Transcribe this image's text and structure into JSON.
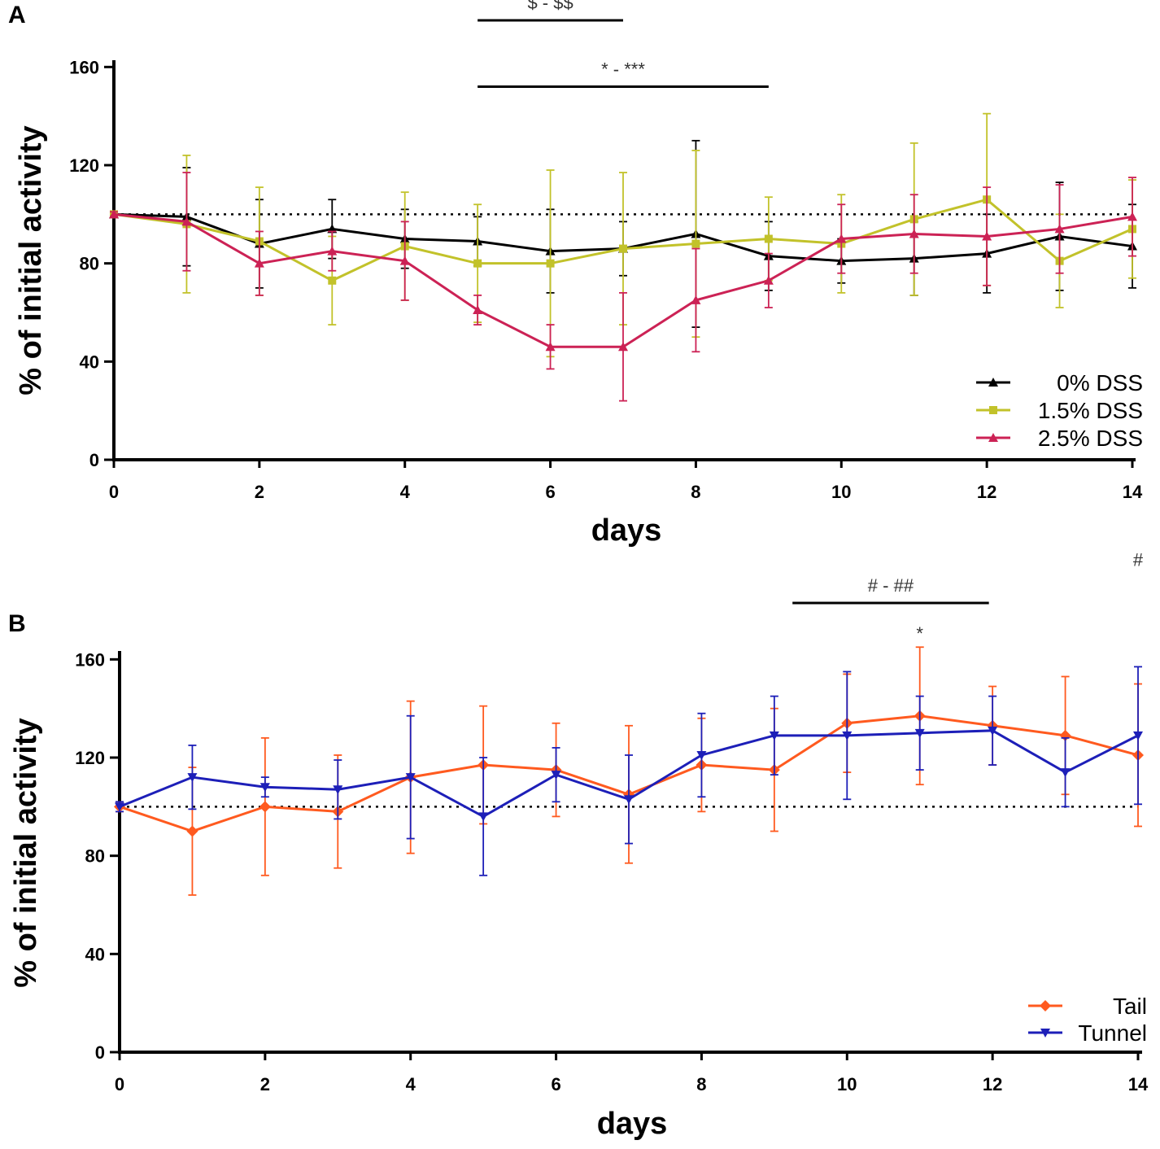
{
  "chart_data": [
    {
      "panel": "A",
      "type": "line",
      "xlabel": "days",
      "ylabel": "% of initial activity",
      "xlim": [
        0,
        14
      ],
      "ylim": [
        0,
        180
      ],
      "xticks": [
        0,
        2,
        4,
        6,
        8,
        10,
        12,
        14
      ],
      "yticks": [
        0,
        40,
        80,
        120,
        160
      ],
      "reference_line": 100,
      "legend_position": "bottom-right",
      "x": [
        0,
        1,
        2,
        3,
        4,
        5,
        6,
        7,
        8,
        9,
        10,
        11,
        12,
        13,
        14
      ],
      "series": [
        {
          "name": "0% DSS",
          "color": "#000000",
          "marker": "triangle-up",
          "values": [
            100,
            99,
            88,
            94,
            90,
            89,
            85,
            86,
            92,
            83,
            81,
            82,
            84,
            91,
            87
          ],
          "errors": [
            1,
            20,
            18,
            12,
            12,
            10,
            17,
            11,
            38,
            14,
            9,
            15,
            16,
            22,
            17
          ]
        },
        {
          "name": "1.5% DSS",
          "color": "#c2c22a",
          "marker": "square",
          "values": [
            100,
            96,
            89,
            73,
            87,
            80,
            80,
            86,
            88,
            90,
            88,
            98,
            106,
            81,
            94
          ],
          "errors": [
            1,
            28,
            22,
            18,
            22,
            24,
            38,
            31,
            38,
            17,
            20,
            31,
            35,
            19,
            20
          ]
        },
        {
          "name": "2.5% DSS",
          "color": "#cc2255",
          "marker": "triangle-up",
          "values": [
            100,
            97,
            80,
            85,
            81,
            61,
            46,
            46,
            65,
            73,
            90,
            92,
            91,
            94,
            99
          ],
          "errors": [
            1,
            20,
            13,
            8,
            16,
            6,
            9,
            22,
            21,
            11,
            14,
            16,
            20,
            18,
            16
          ]
        }
      ],
      "annotations": [
        {
          "text": "$ - $$",
          "x_range": [
            5,
            7
          ],
          "level": 179
        },
        {
          "text": "* - ***",
          "x_range": [
            5,
            9
          ],
          "level": 152
        }
      ]
    },
    {
      "panel": "B",
      "type": "line",
      "xlabel": "days",
      "ylabel": "% of initial activity",
      "xlim": [
        0,
        14
      ],
      "ylim": [
        0,
        180
      ],
      "xticks": [
        0,
        2,
        4,
        6,
        8,
        10,
        12,
        14
      ],
      "yticks": [
        0,
        40,
        80,
        120,
        160
      ],
      "reference_line": 100,
      "legend_position": "bottom-right",
      "x": [
        0,
        1,
        2,
        3,
        4,
        5,
        6,
        7,
        8,
        9,
        10,
        11,
        12,
        13,
        14
      ],
      "series": [
        {
          "name": "Tail",
          "color": "#ff5a1f",
          "marker": "diamond",
          "values": [
            100,
            90,
            100,
            98,
            112,
            117,
            115,
            105,
            117,
            115,
            134,
            137,
            133,
            129,
            121
          ],
          "errors": [
            2,
            26,
            28,
            23,
            31,
            24,
            19,
            28,
            19,
            25,
            20,
            28,
            16,
            24,
            29
          ]
        },
        {
          "name": "Tunnel",
          "color": "#1d1fb8",
          "marker": "triangle-down",
          "values": [
            100,
            112,
            108,
            107,
            112,
            96,
            113,
            103,
            121,
            129,
            129,
            130,
            131,
            114,
            129
          ],
          "errors": [
            2,
            13,
            4,
            12,
            25,
            24,
            11,
            18,
            17,
            16,
            26,
            15,
            14,
            14,
            28
          ]
        }
      ],
      "annotations": [
        {
          "text": "# - ##",
          "x_range": [
            9.25,
            11.95
          ],
          "level": 183
        },
        {
          "text": "*",
          "x": 11,
          "level": 168
        },
        {
          "text": "#",
          "x": 14,
          "level": 198
        }
      ]
    }
  ]
}
